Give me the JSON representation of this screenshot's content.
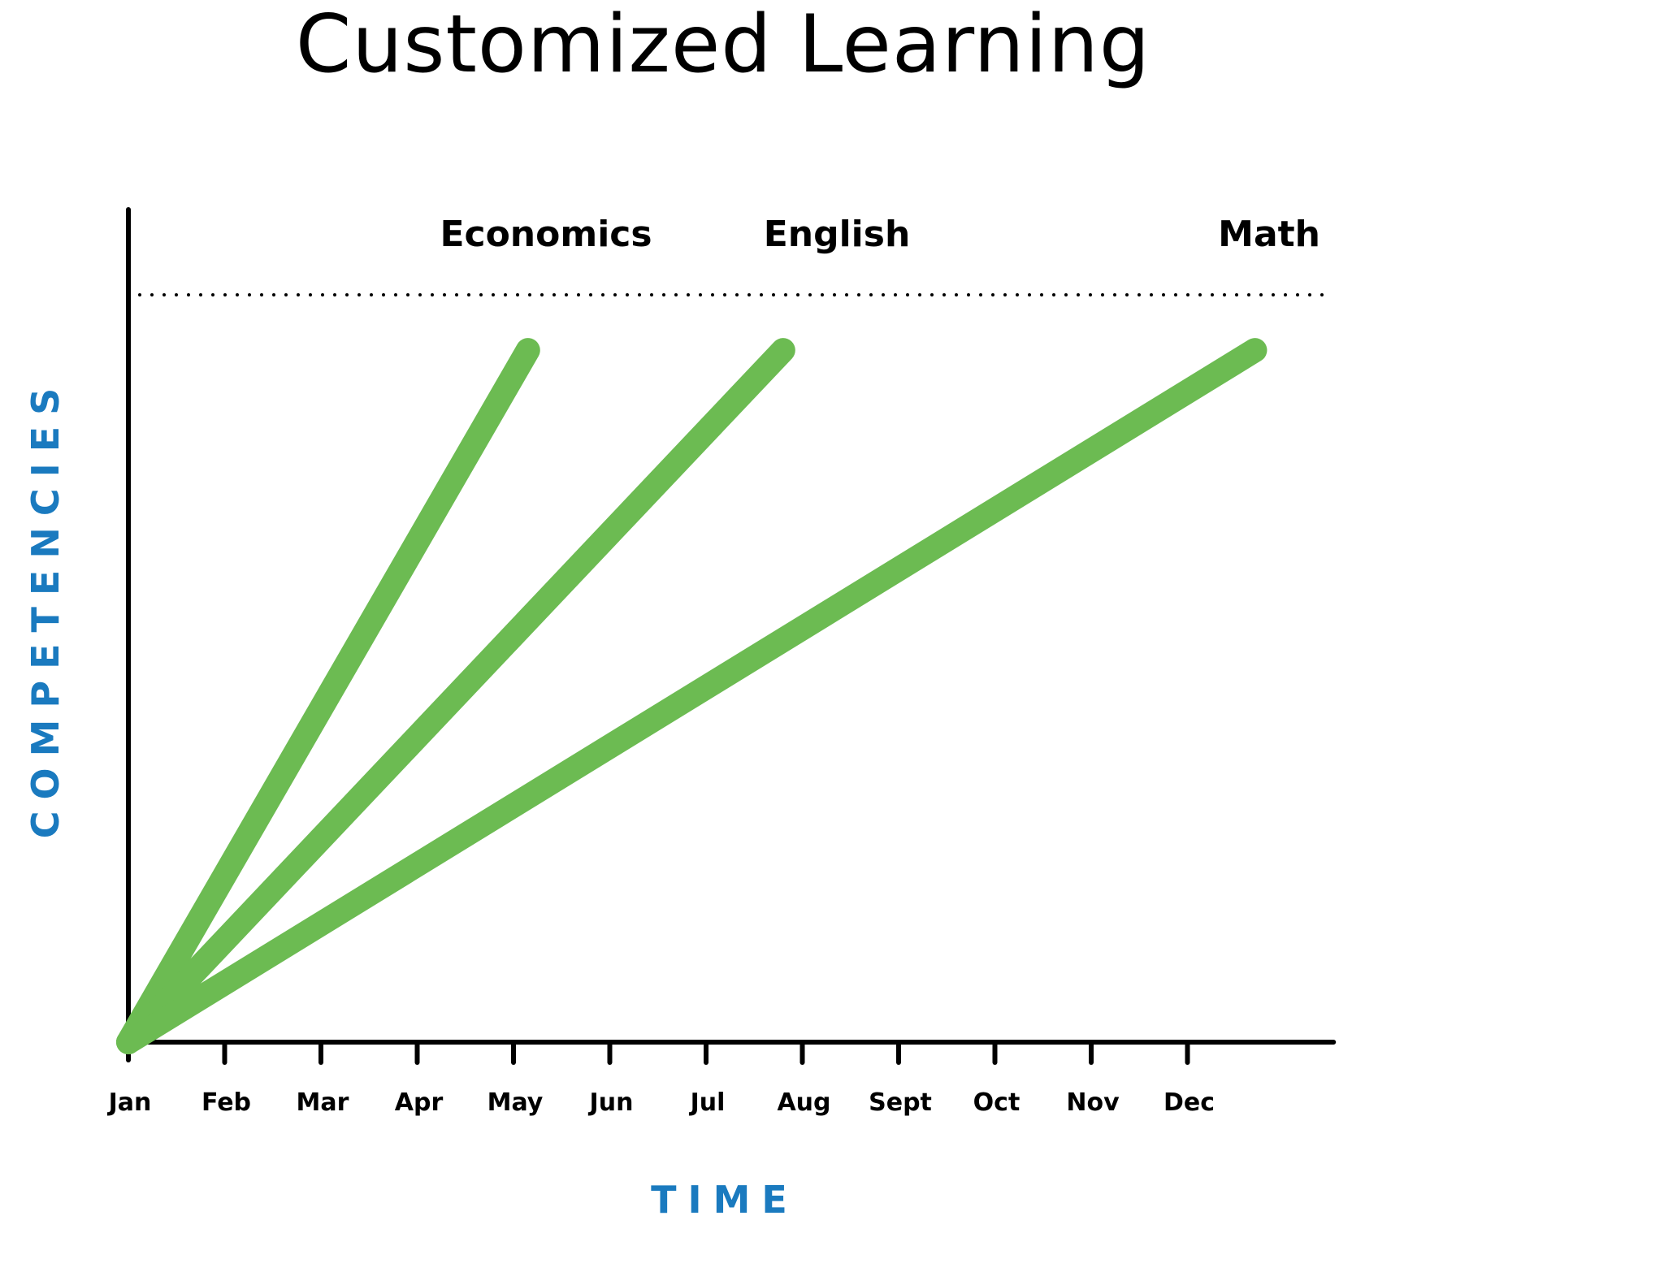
{
  "chart_data": {
    "type": "line",
    "title": "Customized Learning",
    "xlabel": "TIME",
    "ylabel": "COMPETENCIES",
    "categories": [
      "Jan",
      "Feb",
      "Mar",
      "Apr",
      "May",
      "Jun",
      "Jul",
      "Aug",
      "Sept",
      "Oct",
      "Nov",
      "Dec"
    ],
    "x_range": [
      0,
      12.5
    ],
    "ylim": [
      0,
      1.08
    ],
    "target_line": {
      "y": 1.08,
      "style": "dotted"
    },
    "grid": false,
    "legend": "none",
    "series": [
      {
        "name": "Economics",
        "points": [
          [
            0,
            0
          ],
          [
            4.15,
            1.0
          ]
        ]
      },
      {
        "name": "English",
        "points": [
          [
            0,
            0
          ],
          [
            6.8,
            1.0
          ]
        ]
      },
      {
        "name": "Math",
        "points": [
          [
            0,
            0
          ],
          [
            11.7,
            1.0
          ]
        ]
      }
    ],
    "colors": {
      "line": "#6cbb52",
      "axis": "#000000",
      "axis_label": "#1a7abf",
      "text": "#000000"
    }
  }
}
